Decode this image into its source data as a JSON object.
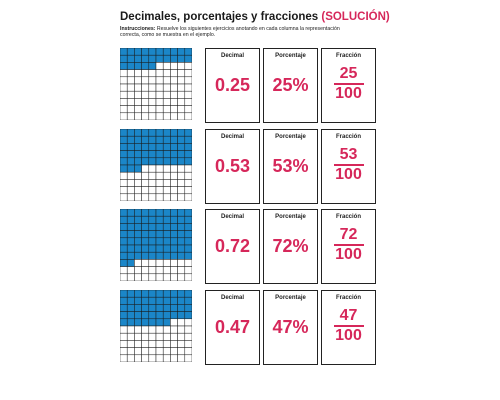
{
  "header": {
    "title_main": "Decimales, porcentajes y fracciones",
    "title_suffix": "(SOLUCIÓN)",
    "instructions_label": "Instrucciones:",
    "instructions_text": " Resuelve los siguientes ejercicios anotando en cada columna la representación correcta, como se muestra en el ejemplo."
  },
  "column_labels": {
    "decimal": "Decimal",
    "percent": "Porcentaje",
    "fraction": "Fracción"
  },
  "colors": {
    "fill": "#1b86c8",
    "grid_line": "#1a1a1a",
    "answer": "#d6275a"
  },
  "exercises": [
    {
      "filled": 25,
      "decimal": "0.25",
      "percent": "25%",
      "numerator": "25",
      "denominator": "100"
    },
    {
      "filled": 53,
      "decimal": "0.53",
      "percent": "53%",
      "numerator": "53",
      "denominator": "100"
    },
    {
      "filled": 72,
      "decimal": "0.72",
      "percent": "72%",
      "numerator": "72",
      "denominator": "100"
    },
    {
      "filled": 47,
      "decimal": "0.47",
      "percent": "47%",
      "numerator": "47",
      "denominator": "100"
    }
  ]
}
